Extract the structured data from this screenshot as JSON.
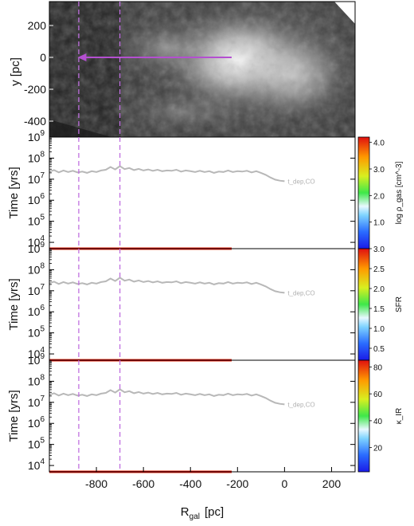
{
  "chart_data": [
    {
      "panel": "image",
      "type": "image",
      "ylabel": "y  [pc]",
      "yticks": [
        200,
        0,
        -200,
        -400
      ],
      "xlim": [
        -1000,
        300
      ],
      "ylim": [
        -500,
        350
      ],
      "arrow": {
        "from_x": -225,
        "to_x": -880,
        "y": 0,
        "color": "#b44fd0"
      }
    },
    {
      "panel": "rho",
      "type": "line",
      "ylabel": "Time  [yrs]",
      "log_y": true,
      "ylim_exp": [
        3.7,
        9
      ],
      "yticks_exp": [
        4,
        5,
        6,
        7,
        8,
        9
      ],
      "xlim": [
        -1000,
        300
      ],
      "r0": -225,
      "curve_model": "t = A·sqrt(1 - R/R0)",
      "band_amplitudes": [
        3000000.0,
        120000000.0
      ],
      "tdep_label": "t_dep,CO",
      "colorbar": {
        "label": "log ρ_gas  [cm^-3]",
        "ticks": [
          "4.0",
          "3.0",
          "2.0",
          "1.0"
        ],
        "range": [
          0,
          4.2
        ]
      }
    },
    {
      "panel": "sfr",
      "type": "line",
      "ylabel": "Time  [yrs]",
      "log_y": true,
      "ylim_exp": [
        3.7,
        9
      ],
      "yticks_exp": [
        4,
        5,
        6,
        7,
        8,
        9
      ],
      "xlim": [
        -1000,
        300
      ],
      "r0": -225,
      "band_amplitudes": [
        20000000.0,
        60000000.0
      ],
      "tdep_label": "t_dep,CO",
      "colorbar": {
        "label": "SFR",
        "ticks": [
          "3.0",
          "2.5",
          "2.0",
          "1.5",
          "1.0",
          "0.5"
        ],
        "range": [
          0.2,
          3.0
        ]
      }
    },
    {
      "panel": "kir",
      "type": "line",
      "ylabel": "Time  [yrs]",
      "log_y": true,
      "ylim_exp": [
        3.7,
        9
      ],
      "yticks_exp": [
        4,
        5,
        6,
        7,
        8,
        9
      ],
      "xlim": [
        -1000,
        300
      ],
      "r0": -225,
      "band_amplitudes": [
        30000000.0,
        38000000.0
      ],
      "tdep_label": "t_dep,CO",
      "colorbar": {
        "label": "κ_IR",
        "ticks": [
          "80",
          "60",
          "40",
          "20"
        ],
        "range": [
          2,
          85
        ]
      }
    }
  ],
  "tdep_curve": {
    "x": [
      -1000,
      -980,
      -960,
      -940,
      -920,
      -900,
      -880,
      -860,
      -840,
      -820,
      -800,
      -780,
      -760,
      -740,
      -720,
      -700,
      -680,
      -660,
      -640,
      -620,
      -600,
      -580,
      -560,
      -540,
      -520,
      -500,
      -480,
      -460,
      -440,
      -420,
      -400,
      -380,
      -360,
      -340,
      -320,
      -300,
      -280,
      -260,
      -240,
      -220,
      -200,
      -180,
      -160,
      -140,
      -120,
      -100,
      -80,
      -60,
      -40,
      -20,
      0
    ],
    "y": [
      23000000.0,
      27000000.0,
      21000000.0,
      26000000.0,
      22000000.0,
      25000000.0,
      21000000.0,
      23000000.0,
      20000000.0,
      24000000.0,
      22000000.0,
      26000000.0,
      28000000.0,
      38000000.0,
      29000000.0,
      42000000.0,
      30000000.0,
      34000000.0,
      27000000.0,
      31000000.0,
      26000000.0,
      29000000.0,
      25000000.0,
      28000000.0,
      24000000.0,
      26000000.0,
      25000000.0,
      28000000.0,
      23000000.0,
      26000000.0,
      24000000.0,
      22000000.0,
      25000000.0,
      22000000.0,
      24000000.0,
      20000000.0,
      23000000.0,
      22000000.0,
      26000000.0,
      22000000.0,
      24000000.0,
      23000000.0,
      25000000.0,
      21000000.0,
      24000000.0,
      20000000.0,
      16000000.0,
      12000000.0,
      9500000.0,
      8500000.0,
      8000000.0
    ]
  },
  "vlines": [
    -875,
    -700
  ],
  "xaxis": {
    "label": "R",
    "label_sub": "gal",
    "label_unit": "[pc]",
    "ticks": [
      -800,
      -600,
      -400,
      -200,
      0,
      200
    ]
  },
  "colors": {
    "vline": "#c070e0",
    "tdep": "#b8b8b8",
    "curve_low": "#2040e0",
    "curve_high": "#e02020"
  }
}
